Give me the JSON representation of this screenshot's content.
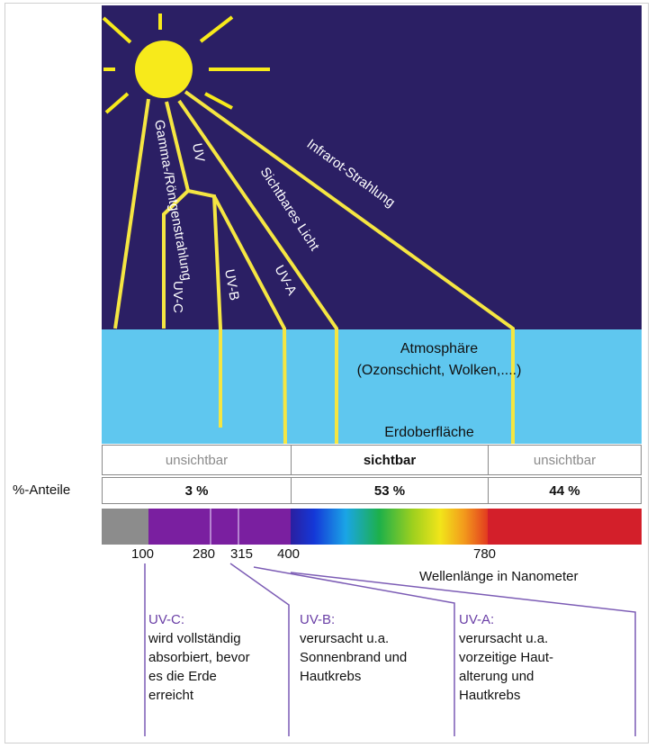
{
  "colors": {
    "sky": "#2b1f64",
    "atmosphere": "#5fc7ef",
    "sun": "#f7ea1b",
    "ray_line": "#f5e642",
    "uv_purple": "#7a1fa0",
    "gray_band": "#8c8c8c",
    "ir_red": "#d31f2a",
    "connector": "#7c5cb5"
  },
  "rays": {
    "gamma": "Gamma-/Röntgenstrahlung",
    "uv": "UV",
    "visible": "Sichtbares Licht",
    "infrared": "Infrarot-Strahlung"
  },
  "uv_bands": {
    "uvc": "UV-C",
    "uvb": "UV-B",
    "uva": "UV-A"
  },
  "atmosphere": {
    "title": "Atmosphäre",
    "subtitle": "(Ozonschicht, Wolken,....)",
    "ground": "Erdoberfläche"
  },
  "visibility_row": {
    "left": "unsichtbar",
    "middle": "sichtbar",
    "right": "unsichtbar"
  },
  "shares": {
    "label": "%-Anteile",
    "uv": "3 %",
    "visible": "53 %",
    "infrared": "44 %"
  },
  "wavelength_ticks": [
    "100",
    "280",
    "315",
    "400",
    "780"
  ],
  "wavelength_label": "Wellenlänge in Nanometer",
  "descriptions": [
    {
      "head": "UV-C:",
      "lines": [
        "wird vollständig",
        "absorbiert, bevor",
        "es die Erde",
        "erreicht"
      ]
    },
    {
      "head": "UV-B:",
      "lines": [
        "verursacht u.a.",
        "Sonnenbrand und",
        "Hautkrebs"
      ]
    },
    {
      "head": "UV-A:",
      "lines": [
        "verursacht u.a.",
        "vorzeitige Haut-",
        "alterung und",
        "Hautkrebs"
      ]
    }
  ]
}
